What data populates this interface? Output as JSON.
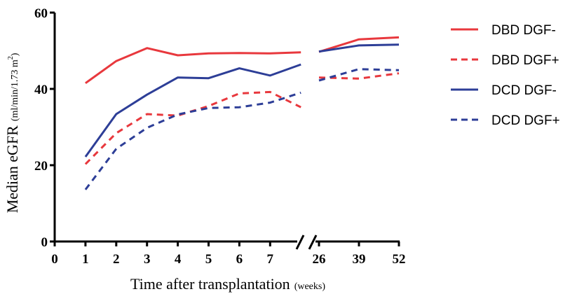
{
  "chart_data": {
    "type": "line",
    "xlabel": {
      "main": "Time after transplantation",
      "unit": "(weeks)"
    },
    "ylabel": {
      "main": "Median eGFR",
      "unit": "(ml/min/1.73 m",
      "sup": "2",
      "close": ")"
    },
    "ylim": [
      0,
      60
    ],
    "yticks": [
      "0",
      "20",
      "40",
      "60"
    ],
    "x_segment_1": {
      "range": [
        0,
        8
      ],
      "ticks": [
        "0",
        "1",
        "2",
        "3",
        "4",
        "5",
        "6",
        "7"
      ]
    },
    "x_segment_2": {
      "categories": [
        "26",
        "39",
        "52"
      ]
    },
    "axis_break": true,
    "grid": false,
    "legend_position": "right",
    "colors": {
      "red": "#e8383d",
      "blue": "#2d3e97"
    },
    "series": [
      {
        "name": "DBD DGF-",
        "color": "#e8383d",
        "dash": false,
        "seg1": [
          [
            1,
            41.5
          ],
          [
            2,
            47.3
          ],
          [
            3,
            50.7
          ],
          [
            4,
            48.8
          ],
          [
            5,
            49.3
          ],
          [
            6,
            49.4
          ],
          [
            7,
            49.3
          ],
          [
            8,
            49.6
          ]
        ],
        "seg2": [
          [
            26,
            49.7
          ],
          [
            39,
            53.0
          ],
          [
            52,
            53.5
          ]
        ]
      },
      {
        "name": "DBD DGF+",
        "color": "#e8383d",
        "dash": true,
        "seg1": [
          [
            1,
            20.3
          ],
          [
            2,
            28.4
          ],
          [
            3,
            33.4
          ],
          [
            4,
            33.0
          ],
          [
            5,
            35.5
          ],
          [
            6,
            38.8
          ],
          [
            7,
            39.2
          ],
          [
            8,
            35.2
          ]
        ],
        "seg2": [
          [
            26,
            43.0
          ],
          [
            39,
            42.7
          ],
          [
            52,
            44.1
          ]
        ]
      },
      {
        "name": "DCD DGF-",
        "color": "#2d3e97",
        "dash": false,
        "seg1": [
          [
            1,
            22.2
          ],
          [
            2,
            33.4
          ],
          [
            3,
            38.5
          ],
          [
            4,
            43.0
          ],
          [
            5,
            42.8
          ],
          [
            6,
            45.4
          ],
          [
            7,
            43.5
          ],
          [
            8,
            46.4
          ]
        ],
        "seg2": [
          [
            26,
            49.8
          ],
          [
            39,
            51.4
          ],
          [
            52,
            51.6
          ]
        ]
      },
      {
        "name": "DCD DGF+",
        "color": "#2d3e97",
        "dash": true,
        "seg1": [
          [
            1,
            13.6
          ],
          [
            2,
            24.3
          ],
          [
            3,
            29.8
          ],
          [
            4,
            33.3
          ],
          [
            5,
            35.0
          ],
          [
            6,
            35.2
          ],
          [
            7,
            36.4
          ],
          [
            8,
            39.0
          ]
        ],
        "seg2": [
          [
            26,
            42.2
          ],
          [
            39,
            45.2
          ],
          [
            52,
            44.9
          ]
        ]
      }
    ]
  }
}
